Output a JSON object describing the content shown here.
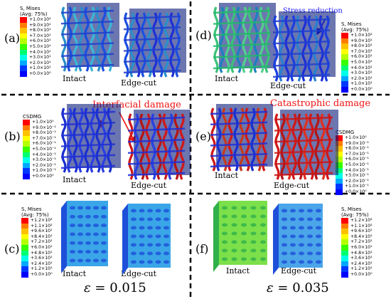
{
  "panels": {
    "a": {
      "label": "(a)"
    },
    "b": {
      "label": "(b)"
    },
    "c": {
      "label": "(c)"
    },
    "d": {
      "label": "(d)"
    },
    "e": {
      "label": "(e)"
    },
    "f": {
      "label": "(f)"
    }
  },
  "captions": {
    "intact": "Intact",
    "edge_cut": "Edge-cut"
  },
  "annotations": {
    "stress_reduction": "Stress reduction",
    "interfacial_damage": "Interfacial damage",
    "catastrophic_damage": "Catastrophic damage"
  },
  "strain": {
    "left": {
      "symbol": "ε",
      "value": "= 0.015"
    },
    "right": {
      "symbol": "ε",
      "value": "= 0.035"
    }
  },
  "legends": {
    "mises_a": {
      "title1": "S, Mises",
      "title2": "(Avg: 75%)",
      "values": [
        "+1.0×10²",
        "+9.0×10¹",
        "+8.0×10¹",
        "+7.0×10¹",
        "+6.0×10¹",
        "+5.0×10¹",
        "+4.0×10¹",
        "+3.0×10¹",
        "+2.0×10¹",
        "+1.0×10¹",
        "+0.0×10⁰"
      ]
    },
    "mises_d": {
      "title1": "S, Mises",
      "title2": "(Avg: 75%)",
      "values": [
        "+1.0×10²",
        "+9.0×10¹",
        "+8.0×10¹",
        "+7.0×10¹",
        "+6.0×10¹",
        "+5.0×10¹",
        "+4.0×10¹",
        "+3.0×10¹",
        "+2.0×10¹",
        "+1.0×10¹",
        "+0.0×10⁰"
      ]
    },
    "csdmg_b": {
      "title1": "CSDMG",
      "title2": "",
      "values": [
        "+1.0×10⁰",
        "+9.0×10⁻¹",
        "+8.0×10⁻¹",
        "+7.0×10⁻¹",
        "+6.0×10⁻¹",
        "+5.0×10⁻¹",
        "+4.0×10⁻¹",
        "+3.0×10⁻¹",
        "+2.0×10⁻¹",
        "+1.0×10⁻¹",
        "+0.0×10⁰"
      ]
    },
    "csdmg_e": {
      "title1": "CSDMG",
      "title2": "",
      "values": [
        "+1.0×10⁰",
        "+9.0×10⁻¹",
        "+8.0×10⁻¹",
        "+7.0×10⁻¹",
        "+6.0×10⁻¹",
        "+5.0×10⁻¹",
        "+4.0×10⁻¹",
        "+3.0×10⁻¹",
        "+2.0×10⁻¹",
        "+1.0×10⁻¹",
        "+0.0×10⁰"
      ]
    },
    "mises_c": {
      "title1": "S, Mises",
      "title2": "(Avg: 75%)",
      "values": [
        "+1.2×10²",
        "+1.1×10²",
        "+9.6×10¹",
        "+8.4×10¹",
        "+7.2×10¹",
        "+6.0×10¹",
        "+4.8×10¹",
        "+3.6×10¹",
        "+2.4×10¹",
        "+1.2×10¹",
        "+0.0×10⁰"
      ]
    },
    "mises_f": {
      "title1": "S, Mises",
      "title2": "(Avg: 75%)",
      "values": [
        "+1.2×10²",
        "+1.1×10²",
        "+9.6×10¹",
        "+8.4×10¹",
        "+7.2×10¹",
        "+6.0×10¹",
        "+4.8×10¹",
        "+3.6×10¹",
        "+2.4×10¹",
        "+1.2×10¹",
        "+0.0×10⁰"
      ]
    }
  },
  "colors": {
    "scale": [
      "#ff0000",
      "#ff7b00",
      "#ffc000",
      "#ffff00",
      "#b4ff00",
      "#37ff00",
      "#00ff73",
      "#00ffe9",
      "#00a8ff",
      "#0038ff",
      "#0000ff"
    ],
    "annotation_red": "#ee1111",
    "annotation_blue": "#1b1bff"
  }
}
